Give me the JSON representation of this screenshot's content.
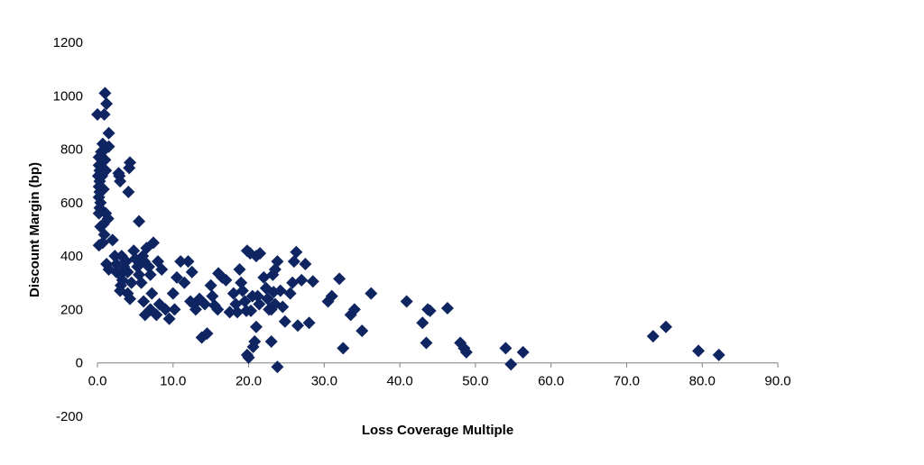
{
  "chart_data": {
    "type": "scatter",
    "title": "",
    "xlabel": "Loss Coverage Multiple",
    "ylabel": "Discount Margin (bp)",
    "xlim": [
      0,
      90
    ],
    "ylim": [
      -200,
      1200
    ],
    "x_ticks": [
      "0.0",
      "10.0",
      "20.0",
      "30.0",
      "40.0",
      "50.0",
      "60.0",
      "70.0",
      "80.0",
      "90.0"
    ],
    "y_ticks": [
      "-200",
      "0",
      "200",
      "400",
      "600",
      "800",
      "1000",
      "1200"
    ],
    "x_tick_values": [
      0,
      10,
      20,
      30,
      40,
      50,
      60,
      70,
      80,
      90
    ],
    "y_tick_values": [
      -200,
      0,
      200,
      400,
      600,
      800,
      1000,
      1200
    ],
    "grid": false,
    "marker_color": "#0f2561",
    "series": [
      {
        "marker": "diamond",
        "points": [
          [
            0.0,
            930
          ],
          [
            0.2,
            770
          ],
          [
            0.2,
            740
          ],
          [
            0.3,
            720
          ],
          [
            0.1,
            700
          ],
          [
            0.3,
            680
          ],
          [
            0.2,
            660
          ],
          [
            0.3,
            640
          ],
          [
            0.2,
            620
          ],
          [
            0.4,
            600
          ],
          [
            0.3,
            580
          ],
          [
            0.2,
            560
          ],
          [
            0.4,
            510
          ],
          [
            0.2,
            440
          ],
          [
            0.6,
            700
          ],
          [
            0.7,
            720
          ],
          [
            0.8,
            650
          ],
          [
            0.5,
            790
          ],
          [
            0.7,
            820
          ],
          [
            1.0,
            760
          ],
          [
            1.1,
            720
          ],
          [
            0.9,
            930
          ],
          [
            1.0,
            1010
          ],
          [
            1.2,
            970
          ],
          [
            1.5,
            860
          ],
          [
            1.5,
            810
          ],
          [
            1.0,
            800
          ],
          [
            1.1,
            560
          ],
          [
            1.4,
            540
          ],
          [
            0.8,
            520
          ],
          [
            0.9,
            480
          ],
          [
            0.7,
            450
          ],
          [
            1.2,
            370
          ],
          [
            1.5,
            350
          ],
          [
            2.0,
            460
          ],
          [
            2.3,
            400
          ],
          [
            2.5,
            370
          ],
          [
            2.5,
            340
          ],
          [
            2.9,
            700
          ],
          [
            2.8,
            710
          ],
          [
            3.0,
            680
          ],
          [
            3.2,
            400
          ],
          [
            3.0,
            330
          ],
          [
            3.3,
            310
          ],
          [
            3.1,
            290
          ],
          [
            3.0,
            270
          ],
          [
            3.5,
            360
          ],
          [
            3.8,
            380
          ],
          [
            4.0,
            340
          ],
          [
            4.2,
            730
          ],
          [
            4.1,
            640
          ],
          [
            4.3,
            750
          ],
          [
            4.0,
            260
          ],
          [
            4.3,
            240
          ],
          [
            4.5,
            300
          ],
          [
            4.8,
            420
          ],
          [
            5.0,
            390
          ],
          [
            5.3,
            360
          ],
          [
            5.5,
            530
          ],
          [
            5.5,
            330
          ],
          [
            5.8,
            300
          ],
          [
            6.0,
            400
          ],
          [
            6.2,
            380
          ],
          [
            6.1,
            230
          ],
          [
            6.3,
            180
          ],
          [
            6.5,
            430
          ],
          [
            6.8,
            360
          ],
          [
            7.0,
            330
          ],
          [
            7.2,
            260
          ],
          [
            7.4,
            450
          ],
          [
            7.0,
            200
          ],
          [
            7.8,
            180
          ],
          [
            8.0,
            380
          ],
          [
            8.2,
            220
          ],
          [
            8.5,
            350
          ],
          [
            9.0,
            200
          ],
          [
            9.5,
            165
          ],
          [
            10.0,
            260
          ],
          [
            10.2,
            200
          ],
          [
            10.5,
            320
          ],
          [
            11.0,
            380
          ],
          [
            11.5,
            300
          ],
          [
            12.0,
            380
          ],
          [
            12.5,
            340
          ],
          [
            12.3,
            230
          ],
          [
            12.8,
            220
          ],
          [
            13.0,
            200
          ],
          [
            13.5,
            240
          ],
          [
            13.8,
            95
          ],
          [
            14.2,
            220
          ],
          [
            14.5,
            110
          ],
          [
            15.0,
            290
          ],
          [
            15.2,
            250
          ],
          [
            15.5,
            215
          ],
          [
            15.9,
            200
          ],
          [
            16.0,
            335
          ],
          [
            16.5,
            320
          ],
          [
            17.0,
            310
          ],
          [
            17.5,
            190
          ],
          [
            18.0,
            260
          ],
          [
            18.3,
            220
          ],
          [
            18.5,
            190
          ],
          [
            18.8,
            350
          ],
          [
            19.0,
            300
          ],
          [
            19.2,
            270
          ],
          [
            19.5,
            230
          ],
          [
            19.7,
            195
          ],
          [
            19.8,
            420
          ],
          [
            20.2,
            410
          ],
          [
            20.5,
            250
          ],
          [
            20.3,
            195
          ],
          [
            20.8,
            80
          ],
          [
            20.6,
            60
          ],
          [
            21.0,
            400
          ],
          [
            21.5,
            410
          ],
          [
            21.2,
            250
          ],
          [
            21.4,
            220
          ],
          [
            21.0,
            135
          ],
          [
            22.0,
            320
          ],
          [
            22.3,
            280
          ],
          [
            22.5,
            240
          ],
          [
            22.7,
            200
          ],
          [
            23.0,
            80
          ],
          [
            23.2,
            330
          ],
          [
            23.5,
            350
          ],
          [
            23.8,
            380
          ],
          [
            23.3,
            265
          ],
          [
            23.5,
            220
          ],
          [
            23.0,
            200
          ],
          [
            23.8,
            -15
          ],
          [
            24.2,
            270
          ],
          [
            24.5,
            210
          ],
          [
            24.8,
            155
          ],
          [
            25.5,
            260
          ],
          [
            25.8,
            300
          ],
          [
            26.0,
            380
          ],
          [
            26.3,
            415
          ],
          [
            26.5,
            140
          ],
          [
            27.0,
            310
          ],
          [
            27.5,
            370
          ],
          [
            28.0,
            150
          ],
          [
            28.5,
            305
          ],
          [
            30.5,
            230
          ],
          [
            31.0,
            250
          ],
          [
            32.0,
            315
          ],
          [
            32.5,
            55
          ],
          [
            33.5,
            180
          ],
          [
            34.0,
            200
          ],
          [
            35.0,
            120
          ],
          [
            36.2,
            260
          ],
          [
            40.9,
            230
          ],
          [
            43.0,
            150
          ],
          [
            43.5,
            75
          ],
          [
            43.7,
            200
          ],
          [
            44.0,
            195
          ],
          [
            46.3,
            205
          ],
          [
            48.0,
            75
          ],
          [
            48.5,
            55
          ],
          [
            48.8,
            40
          ],
          [
            54.0,
            55
          ],
          [
            54.7,
            -5
          ],
          [
            56.3,
            40
          ],
          [
            73.5,
            100
          ],
          [
            75.2,
            135
          ],
          [
            79.5,
            45
          ],
          [
            82.2,
            30
          ],
          [
            19.8,
            30
          ],
          [
            20.0,
            20
          ]
        ]
      }
    ]
  }
}
